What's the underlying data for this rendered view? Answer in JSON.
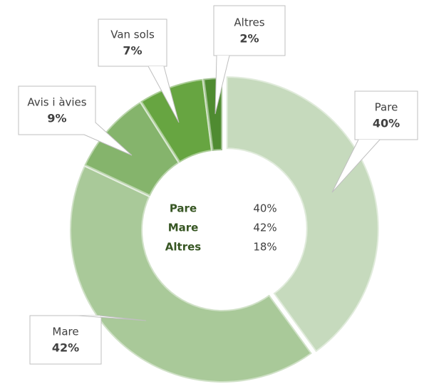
{
  "chart_data": {
    "type": "donut",
    "categories": [
      "Pare",
      "Mare",
      "Avis i àvies",
      "Van sols",
      "Altres"
    ],
    "values": [
      40,
      42,
      9,
      7,
      2
    ],
    "value_labels": [
      "40%",
      "42%",
      "9%",
      "7%",
      "2%"
    ],
    "colors": [
      "#c6dabd",
      "#a9c999",
      "#85b46c",
      "#67a541",
      "#4f8b31"
    ]
  },
  "center_table": {
    "rows": [
      [
        "Pare",
        "40%"
      ],
      [
        "Mare",
        "42%"
      ],
      [
        "Altres",
        "18%"
      ]
    ]
  }
}
